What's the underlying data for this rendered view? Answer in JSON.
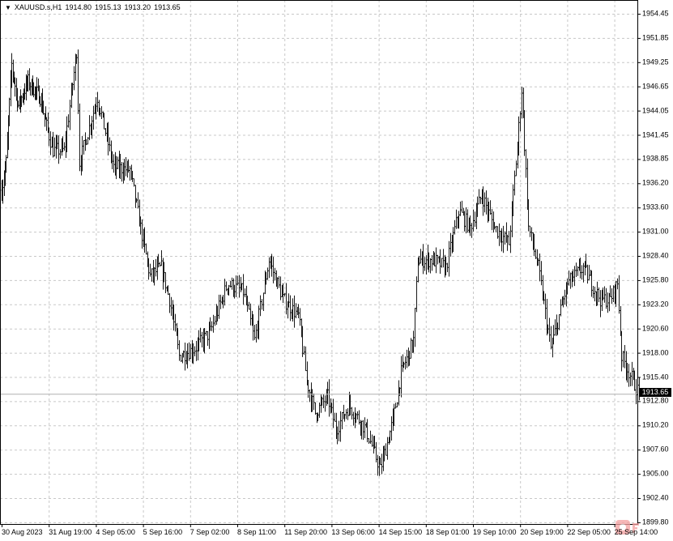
{
  "header": {
    "symbol": "XAUUSD.s,H1",
    "open": "1914.80",
    "high": "1915.13",
    "low": "1913.20",
    "close": "1913.65"
  },
  "current_price_label": "1913.65",
  "watermark": "FXHub",
  "colors": {
    "background": "#ffffff",
    "bars": "#1a1a1a",
    "grid": "#c8c8c8",
    "price_line": "#b0b0b0"
  },
  "chart_data": {
    "type": "bar",
    "subtype": "ohlc",
    "timeframe": "H1",
    "grid": true,
    "ylim": [
      1899.8,
      1955.5
    ],
    "y_ticks": [
      "1954.45",
      "1951.85",
      "1949.25",
      "1946.65",
      "1944.05",
      "1941.45",
      "1938.85",
      "1936.20",
      "1933.60",
      "1931.00",
      "1928.40",
      "1925.80",
      "1923.20",
      "1920.60",
      "1918.00",
      "1915.40",
      "1912.80",
      "1910.20",
      "1907.60",
      "1905.00",
      "1902.40",
      "1899.80"
    ],
    "x_ticks": [
      "30 Aug 2023",
      "31 Aug 19:00",
      "4 Sep 05:00",
      "5 Sep 16:00",
      "7 Sep 02:00",
      "8 Sep 11:00",
      "11 Sep 20:00",
      "13 Sep 06:00",
      "14 Sep 15:00",
      "18 Sep 01:00",
      "19 Sep 10:00",
      "20 Sep 19:00",
      "22 Sep 05:00",
      "25 Sep 14:00"
    ],
    "approx_price_path": [
      [
        "30 Aug 00:00",
        1935.5
      ],
      [
        "30 Aug 04:00",
        1938.5
      ],
      [
        "30 Aug 09:00",
        1949.0
      ],
      [
        "30 Aug 15:00",
        1944.6
      ],
      [
        "31 Aug 00:00",
        1947.2
      ],
      [
        "31 Aug 11:00",
        1945.5
      ],
      [
        "31 Aug 22:00",
        1939.8
      ],
      [
        "1 Sep 06:00",
        1939.8
      ],
      [
        "1 Sep 15:00",
        1950.5
      ],
      [
        "1 Sep 17:00",
        1938.5
      ],
      [
        "4 Sep 06:00",
        1945.5
      ],
      [
        "4 Sep 18:00",
        1938.0
      ],
      [
        "5 Sep 06:00",
        1937.7
      ],
      [
        "5 Sep 15:00",
        1930.7
      ],
      [
        "5 Sep 21:00",
        1926.3
      ],
      [
        "6 Sep 05:00",
        1927.2
      ],
      [
        "6 Sep 11:00",
        1923.8
      ],
      [
        "6 Sep 18:00",
        1917.7
      ],
      [
        "7 Sep 05:00",
        1918.5
      ],
      [
        "7 Sep 16:00",
        1920.3
      ],
      [
        "8 Sep 04:00",
        1925.5
      ],
      [
        "8 Sep 15:00",
        1924.6
      ],
      [
        "8 Sep 23:00",
        1919.4
      ],
      [
        "11 Sep 09:00",
        1928.0
      ],
      [
        "11 Sep 19:00",
        1923.8
      ],
      [
        "12 Sep 06:00",
        1922.0
      ],
      [
        "12 Sep 12:00",
        1915.0
      ],
      [
        "12 Sep 18:00",
        1911.6
      ],
      [
        "13 Sep 03:00",
        1913.3
      ],
      [
        "13 Sep 09:00",
        1909.8
      ],
      [
        "13 Sep 18:00",
        1912.4
      ],
      [
        "14 Sep 06:00",
        1909.8
      ],
      [
        "14 Sep 16:00",
        1905.5
      ],
      [
        "15 Sep 01:00",
        1910.7
      ],
      [
        "15 Sep 07:00",
        1915.9
      ],
      [
        "15 Sep 16:00",
        1919.4
      ],
      [
        "15 Sep 19:00",
        1928.0
      ],
      [
        "18 Sep 06:00",
        1928.0
      ],
      [
        "18 Sep 15:00",
        1927.2
      ],
      [
        "19 Sep 00:00",
        1933.3
      ],
      [
        "19 Sep 08:00",
        1931.5
      ],
      [
        "19 Sep 16:00",
        1935.0
      ],
      [
        "20 Sep 01:00",
        1931.5
      ],
      [
        "20 Sep 11:00",
        1929.8
      ],
      [
        "20 Sep 17:00",
        1940.3
      ],
      [
        "20 Sep 20:00",
        1946.3
      ],
      [
        "21 Sep 01:00",
        1931.5
      ],
      [
        "21 Sep 08:00",
        1927.2
      ],
      [
        "21 Sep 17:00",
        1918.5
      ],
      [
        "22 Sep 05:00",
        1925.5
      ],
      [
        "22 Sep 16:00",
        1927.2
      ],
      [
        "25 Sep 04:00",
        1923.8
      ],
      [
        "25 Sep 11:00",
        1923.8
      ],
      [
        "25 Sep 16:00",
        1925.5
      ],
      [
        "25 Sep 19:00",
        1917.7
      ],
      [
        "26 Sep 07:00",
        1913.65
      ]
    ],
    "last_price": 1913.65
  }
}
